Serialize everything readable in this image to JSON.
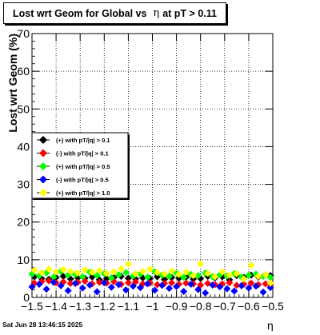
{
  "title": {
    "before": "Lost wrt Geom for Global vs",
    "symbol": "η",
    "after": "at pT > 0.11"
  },
  "timestamp": "Sat Jun 28 13:46:15 2025",
  "chart_data": {
    "type": "scatter",
    "xlabel": "η",
    "ylabel": "Lost wrt Geom (%)",
    "xlim": [
      -1.5,
      -0.5
    ],
    "ylim": [
      0,
      70
    ],
    "xticks": [
      -1.5,
      -1.4,
      -1.3,
      -1.2,
      -1.1,
      -1,
      -0.9,
      -0.8,
      -0.7,
      -0.6,
      -0.5
    ],
    "xtick_labels": [
      "−1.5",
      "−1.4",
      "−1.3",
      "−1.2",
      "−1.1",
      "−1",
      "−0.9",
      "−0.8",
      "−0.7",
      "−0.6",
      "−0.5"
    ],
    "yticks": [
      0,
      10,
      20,
      30,
      40,
      50,
      60,
      70
    ],
    "ytick_labels": [
      "0",
      "10",
      "20",
      "30",
      "40",
      "50",
      "60",
      "70"
    ],
    "grid": true,
    "legend_position": "left-middle",
    "series": [
      {
        "name": "(+) with pT/|q| > 0.1",
        "color": "#000000",
        "x": [
          -1.49,
          -1.46,
          -1.43,
          -1.4,
          -1.37,
          -1.34,
          -1.31,
          -1.28,
          -1.25,
          -1.22,
          -1.19,
          -1.16,
          -1.13,
          -1.1,
          -1.07,
          -1.04,
          -1.01,
          -0.98,
          -0.95,
          -0.92,
          -0.89,
          -0.86,
          -0.83,
          -0.8,
          -0.77,
          -0.74,
          -0.71,
          -0.68,
          -0.65,
          -0.62,
          -0.59,
          -0.56,
          -0.53,
          -0.51
        ],
        "y": [
          5.5,
          5.0,
          4.8,
          5.3,
          5.6,
          4.9,
          5.2,
          5.1,
          5.4,
          4.7,
          5.0,
          5.3,
          5.6,
          5.1,
          4.9,
          5.2,
          5.0,
          5.5,
          4.8,
          5.3,
          5.1,
          5.4,
          4.9,
          5.0,
          5.6,
          5.2,
          5.5,
          4.7,
          5.8,
          5.3,
          5.9,
          5.4,
          6.0,
          5.8
        ]
      },
      {
        "name": "(-) with pT/|q| > 0.1",
        "color": "#ff0000",
        "x": [
          -1.49,
          -1.46,
          -1.43,
          -1.4,
          -1.37,
          -1.34,
          -1.31,
          -1.28,
          -1.25,
          -1.22,
          -1.19,
          -1.16,
          -1.13,
          -1.1,
          -1.07,
          -1.04,
          -1.01,
          -0.98,
          -0.95,
          -0.92,
          -0.89,
          -0.86,
          -0.83,
          -0.8,
          -0.77,
          -0.74,
          -0.71,
          -0.68,
          -0.65,
          -0.62,
          -0.59,
          -0.56,
          -0.53,
          -0.51
        ],
        "y": [
          3.8,
          4.2,
          4.4,
          3.9,
          4.1,
          3.7,
          4.0,
          4.3,
          3.6,
          4.0,
          3.8,
          4.2,
          3.5,
          3.9,
          4.1,
          3.6,
          3.8,
          3.4,
          3.7,
          3.9,
          3.5,
          3.8,
          3.6,
          3.3,
          3.7,
          3.4,
          3.6,
          3.9,
          3.2,
          3.5,
          3.8,
          3.4,
          3.6,
          3.3
        ]
      },
      {
        "name": "(+) with pT/|q| > 0.5",
        "color": "#00ff00",
        "x": [
          -1.5,
          -1.47,
          -1.44,
          -1.41,
          -1.38,
          -1.35,
          -1.32,
          -1.29,
          -1.26,
          -1.23,
          -1.2,
          -1.17,
          -1.14,
          -1.11,
          -1.08,
          -1.05,
          -1.02,
          -0.99,
          -0.96,
          -0.93,
          -0.9,
          -0.87,
          -0.84,
          -0.81,
          -0.78,
          -0.75,
          -0.72,
          -0.69,
          -0.66,
          -0.63,
          -0.6,
          -0.57,
          -0.54,
          -0.51
        ],
        "y": [
          6.2,
          5.8,
          6.5,
          5.4,
          6.9,
          5.9,
          6.1,
          5.5,
          6.7,
          5.8,
          6.3,
          5.2,
          6.0,
          6.6,
          5.7,
          6.2,
          5.4,
          6.8,
          5.9,
          5.6,
          6.4,
          5.3,
          6.1,
          5.8,
          6.5,
          5.5,
          6.0,
          5.7,
          6.3,
          5.4,
          5.9,
          6.2,
          5.6,
          5.3
        ]
      },
      {
        "name": "(-) with pT/|q| > 0.5",
        "color": "#0000ff",
        "x": [
          -1.5,
          -1.47,
          -1.44,
          -1.41,
          -1.38,
          -1.35,
          -1.32,
          -1.29,
          -1.26,
          -1.23,
          -1.2,
          -1.17,
          -1.14,
          -1.11,
          -1.08,
          -1.05,
          -1.02,
          -0.99,
          -0.96,
          -0.93,
          -0.9,
          -0.87,
          -0.84,
          -0.81,
          -0.78,
          -0.75,
          -0.72,
          -0.69,
          -0.66,
          -0.63,
          -0.6,
          -0.57,
          -0.54,
          -0.51
        ],
        "y": [
          2.8,
          3.5,
          2.2,
          4.0,
          3.1,
          1.8,
          3.7,
          2.5,
          3.3,
          1.5,
          3.9,
          2.7,
          3.4,
          2.0,
          3.0,
          2.6,
          3.6,
          1.9,
          3.2,
          2.4,
          2.9,
          1.6,
          3.5,
          2.1,
          1.2,
          3.3,
          2.8,
          2.3,
          1.7,
          3.1,
          2.5,
          3.0,
          1.4,
          2.6
        ]
      },
      {
        "name": "(+) with pT/|q| > 1.0",
        "color": "#ffff00",
        "x": [
          -1.49,
          -1.46,
          -1.43,
          -1.4,
          -1.37,
          -1.34,
          -1.31,
          -1.28,
          -1.25,
          -1.22,
          -1.19,
          -1.16,
          -1.13,
          -1.1,
          -1.07,
          -1.04,
          -1.01,
          -0.98,
          -0.95,
          -0.92,
          -0.89,
          -0.86,
          -0.83,
          -0.8,
          -0.77,
          -0.74,
          -0.71,
          -0.68,
          -0.65,
          -0.62,
          -0.59,
          -0.56,
          -0.53,
          -0.51
        ],
        "y": [
          7.2,
          6.6,
          7.5,
          6.8,
          7.4,
          6.9,
          6.5,
          7.3,
          6.7,
          7.1,
          6.4,
          6.8,
          7.6,
          8.8,
          6.3,
          6.9,
          7.5,
          6.6,
          6.2,
          7.0,
          6.1,
          6.7,
          5.8,
          8.9,
          6.4,
          5.5,
          6.8,
          5.9,
          6.3,
          4.9,
          8.5,
          5.6,
          6.0,
          3.8
        ]
      }
    ]
  }
}
